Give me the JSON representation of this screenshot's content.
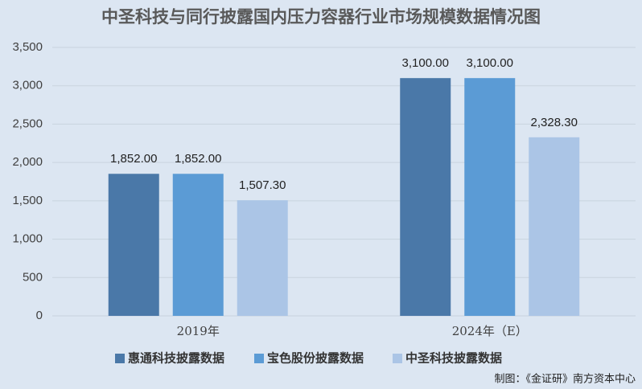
{
  "chart_data": {
    "type": "bar",
    "title": "中圣科技与同行披露国内压力容器行业市场规模数据情况图",
    "categories": [
      "2019年",
      "2024年（E）"
    ],
    "series": [
      {
        "name": "惠通科技披露数据",
        "color": "#4a78a8",
        "values": [
          1852,
          3100
        ],
        "value_labels": [
          "1,852.00",
          "3,100.00"
        ]
      },
      {
        "name": "宝色股份披露数据",
        "color": "#5b9bd5",
        "values": [
          1852,
          3100
        ],
        "value_labels": [
          "1,852.00",
          "3,100.00"
        ]
      },
      {
        "name": "中圣科技披露数据",
        "color": "#abc5e6",
        "values": [
          1507.3,
          2328.3
        ],
        "value_labels": [
          "1,507.30",
          "2,328.30"
        ]
      }
    ],
    "ylim": [
      0,
      3500
    ],
    "yticks": [
      0,
      500,
      {
        "value": 1000,
        "label": "1,000"
      },
      {
        "value": 1500,
        "label": "1,500"
      },
      {
        "value": 2000,
        "label": "2,000"
      },
      {
        "value": 2500,
        "label": "2,500"
      },
      {
        "value": 3000,
        "label": "3,000"
      },
      {
        "value": 3500,
        "label": "3,500"
      }
    ],
    "grid": true,
    "legend": "bottom",
    "source": "制图：《金证研》南方资本中心"
  }
}
